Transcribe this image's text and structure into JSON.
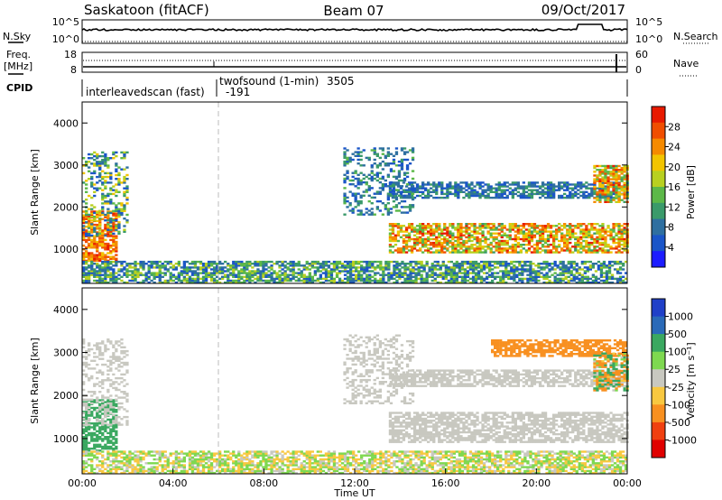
{
  "header": {
    "station": "Saskatoon (fitACF)",
    "beam": "Beam 07",
    "date": "09/Oct/2017"
  },
  "nsky_panel": {
    "left_label": "N.Sky",
    "left_ticks": [
      "10^5",
      "10^0"
    ],
    "right_ticks": [
      "10^5",
      "10^0"
    ],
    "right_label": "N.Search"
  },
  "freq_panel": {
    "left_label_1": "Freq.",
    "left_label_2": "[MHz]",
    "left_ticks": [
      "18",
      "8"
    ],
    "right_ticks": [
      "60",
      "0"
    ],
    "right_label": "Nave"
  },
  "cpid": {
    "label": "CPID",
    "modes": [
      {
        "name": "interleavedscan (fast)",
        "id": "-191"
      },
      {
        "name": "twofsound (1-min)",
        "id": "3505"
      }
    ]
  },
  "chart_data": [
    {
      "type": "heatmap",
      "title": "",
      "xlabel": "Time UT",
      "ylabel": "Slant Range [km]",
      "x_ticks": [
        "00:00",
        "04:00",
        "08:00",
        "12:00",
        "16:00",
        "20:00",
        "00:00"
      ],
      "xlim": [
        0,
        24
      ],
      "ylim": [
        180,
        4500
      ],
      "y_ticks": [
        1000,
        2000,
        3000,
        4000
      ],
      "grid": false,
      "mode_change_hour": 6.0,
      "colorbar": {
        "label": "Power [dB]",
        "ticks": [
          "4",
          "8",
          "12",
          "16",
          "20",
          "24",
          "28"
        ],
        "colors": [
          "#1c1cff",
          "#1a55c8",
          "#2e6fa0",
          "#3a9a6a",
          "#5cb848",
          "#b8d020",
          "#f2c400",
          "#f58a00",
          "#f04e00",
          "#e81a00"
        ]
      },
      "echo_regions": [
        {
          "t_start": 0.0,
          "t_end": 1.5,
          "range_km": [
            700,
            1900
          ],
          "power_db": [
            20,
            30
          ]
        },
        {
          "t_start": 0.0,
          "t_end": 2.0,
          "range_km": [
            1300,
            3300
          ],
          "power_db": [
            4,
            22
          ]
        },
        {
          "t_start": 0.0,
          "t_end": 24.0,
          "range_km": [
            180,
            700
          ],
          "power_db": [
            4,
            18
          ]
        },
        {
          "t_start": 13.5,
          "t_end": 24.0,
          "range_km": [
            900,
            1600
          ],
          "power_db": [
            12,
            30
          ]
        },
        {
          "t_start": 13.5,
          "t_end": 24.0,
          "range_km": [
            2200,
            2600
          ],
          "power_db": [
            4,
            12
          ]
        },
        {
          "t_start": 11.5,
          "t_end": 14.5,
          "range_km": [
            1800,
            3400
          ],
          "power_db": [
            4,
            14
          ]
        },
        {
          "t_start": 22.5,
          "t_end": 24.0,
          "range_km": [
            2100,
            3000
          ],
          "power_db": [
            12,
            30
          ]
        }
      ]
    },
    {
      "type": "heatmap",
      "title": "",
      "xlabel": "Time UT",
      "ylabel": "Slant Range [km]",
      "x_ticks": [
        "00:00",
        "04:00",
        "08:00",
        "12:00",
        "16:00",
        "20:00",
        "00:00"
      ],
      "xlim": [
        0,
        24
      ],
      "ylim": [
        180,
        4500
      ],
      "y_ticks": [
        1000,
        2000,
        3000,
        4000
      ],
      "grid": false,
      "colorbar": {
        "label": "Velocity [m s⁻¹]",
        "ticks": [
          "1000",
          "500",
          "100",
          "25",
          "-25",
          "-100",
          "-500",
          "-1000"
        ],
        "colors": [
          "#2040c8",
          "#2a6ab8",
          "#3aa860",
          "#7ed850",
          "#c8c8c0",
          "#f8c840",
          "#f89020",
          "#f04010",
          "#e00000"
        ]
      },
      "echo_regions": [
        {
          "t_start": 0.0,
          "t_end": 1.5,
          "range_km": [
            700,
            1900
          ],
          "velocity_ms": [
            100,
            500
          ]
        },
        {
          "t_start": 0.0,
          "t_end": 2.0,
          "range_km": [
            1300,
            3300
          ],
          "velocity_ms": [
            -25,
            25
          ]
        },
        {
          "t_start": 0.0,
          "t_end": 24.0,
          "range_km": [
            180,
            700
          ],
          "velocity_ms": [
            -100,
            100
          ]
        },
        {
          "t_start": 13.5,
          "t_end": 24.0,
          "range_km": [
            900,
            1600
          ],
          "velocity_ms": [
            -25,
            25
          ]
        },
        {
          "t_start": 13.5,
          "t_end": 24.0,
          "range_km": [
            2200,
            2600
          ],
          "velocity_ms": [
            -25,
            25
          ]
        },
        {
          "t_start": 11.5,
          "t_end": 14.5,
          "range_km": [
            1800,
            3400
          ],
          "velocity_ms": [
            -25,
            25
          ]
        },
        {
          "t_start": 18.0,
          "t_end": 24.0,
          "range_km": [
            2900,
            3300
          ],
          "velocity_ms": [
            -500,
            -100
          ]
        },
        {
          "t_start": 22.5,
          "t_end": 24.0,
          "range_km": [
            2100,
            3000
          ],
          "velocity_ms": [
            -500,
            500
          ]
        }
      ]
    }
  ]
}
